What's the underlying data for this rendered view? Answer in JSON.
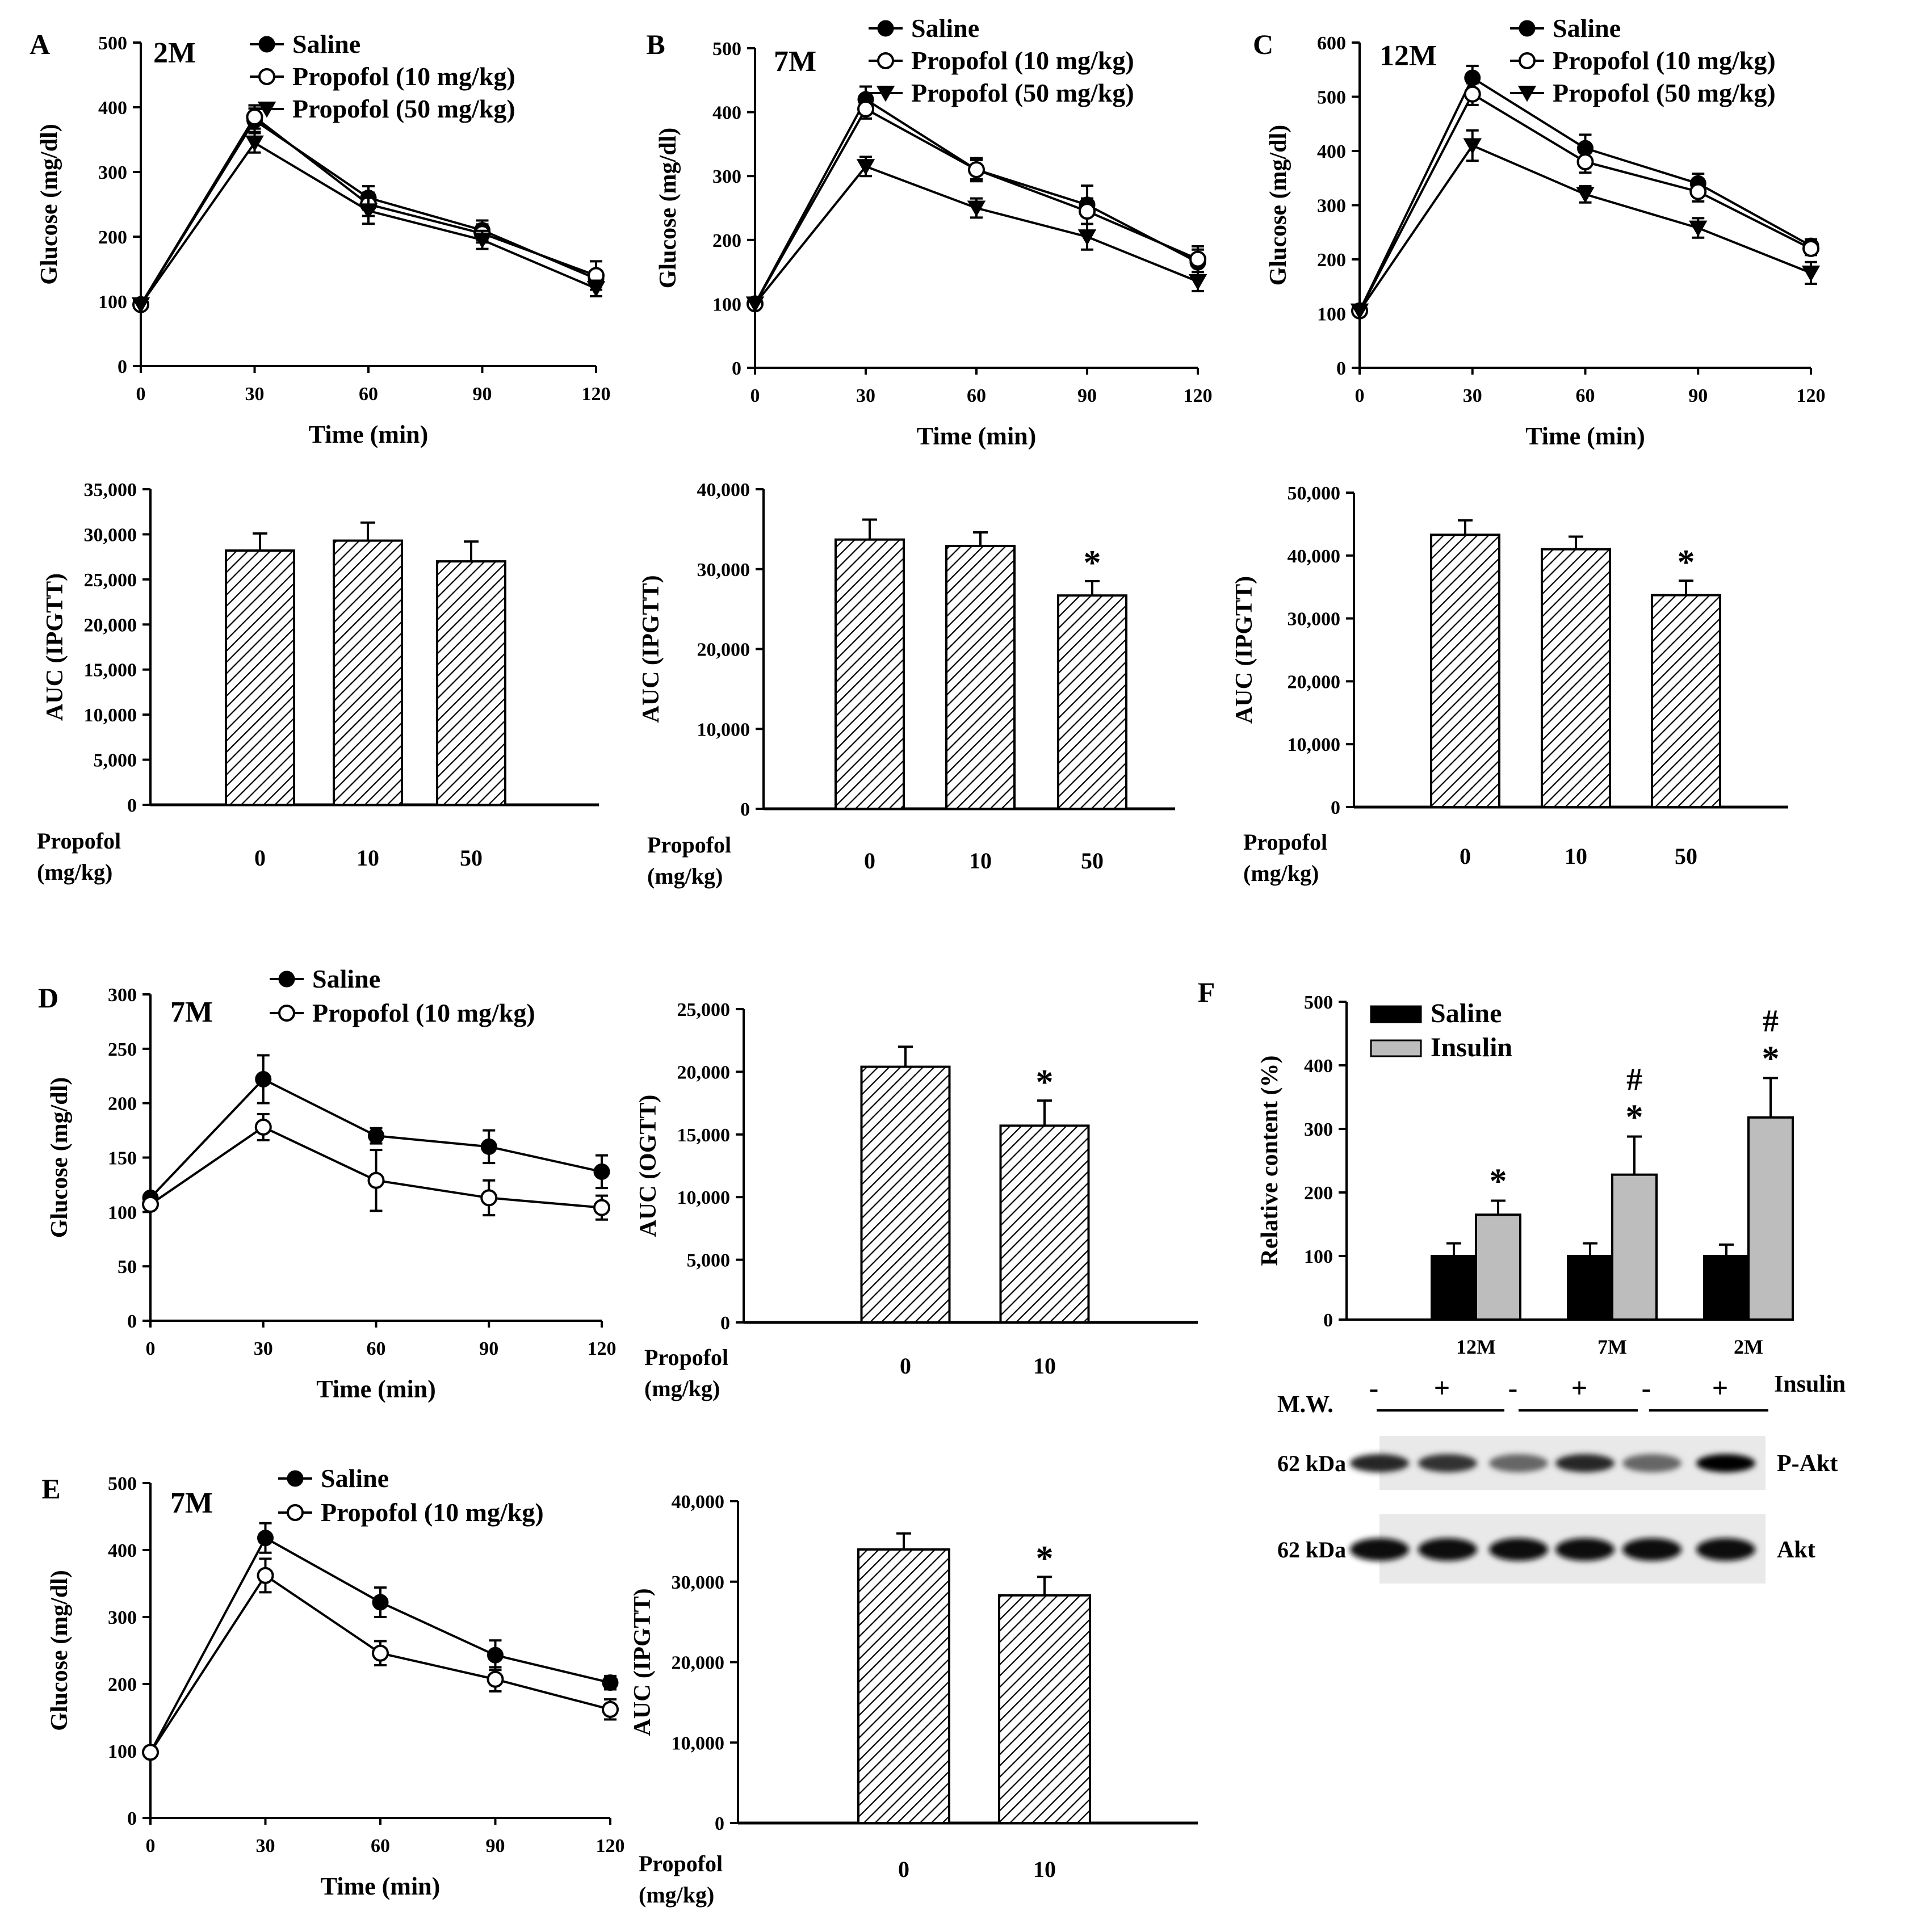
{
  "figure": {
    "panel_letters": [
      "A",
      "B",
      "C",
      "D",
      "E",
      "F"
    ]
  },
  "chart_data": [
    {
      "id": "A_line",
      "type": "line",
      "panel_letter": "A",
      "tag": "2M",
      "xlabel": "Time (min)",
      "ylabel": "Glucose (mg/dl)",
      "x": [
        0,
        30,
        60,
        90,
        120
      ],
      "xticks": [
        "0",
        "30",
        "60",
        "90",
        "120"
      ],
      "ylim": [
        0,
        500
      ],
      "yticks": [
        "0",
        "100",
        "200",
        "300",
        "400",
        "500"
      ],
      "series": [
        {
          "name": "Saline",
          "marker": "filled-circle",
          "values": [
            95,
            380,
            260,
            210,
            135
          ],
          "errors": [
            0,
            18,
            18,
            15,
            12
          ]
        },
        {
          "name": "Propofol  (10 mg/kg)",
          "marker": "open-circle",
          "values": [
            95,
            385,
            250,
            205,
            140
          ],
          "errors": [
            0,
            18,
            18,
            14,
            22
          ]
        },
        {
          "name": "Propofol  (50 mg/kg)",
          "marker": "filled-triangle-down",
          "values": [
            95,
            345,
            240,
            195,
            120
          ],
          "errors": [
            0,
            15,
            20,
            14,
            12
          ]
        }
      ]
    },
    {
      "id": "B_line",
      "type": "line",
      "panel_letter": "B",
      "tag": "7M",
      "xlabel": "Time (min)",
      "ylabel": "Glucose (mg/dl)",
      "x": [
        0,
        30,
        60,
        90,
        120
      ],
      "xticks": [
        "0",
        "30",
        "60",
        "90",
        "120"
      ],
      "ylim": [
        0,
        500
      ],
      "yticks": [
        "0",
        "100",
        "200",
        "300",
        "400",
        "500"
      ],
      "series": [
        {
          "name": "Saline",
          "marker": "filled-circle",
          "values": [
            100,
            420,
            310,
            255,
            165
          ],
          "errors": [
            0,
            20,
            15,
            30,
            20
          ]
        },
        {
          "name": "Propofol (10 mg/kg)",
          "marker": "open-circle",
          "values": [
            100,
            405,
            310,
            245,
            170
          ],
          "errors": [
            0,
            15,
            18,
            20,
            20
          ]
        },
        {
          "name": "Propofol (50 mg/kg)",
          "marker": "filled-triangle-down",
          "values": [
            100,
            315,
            250,
            205,
            135
          ],
          "errors": [
            0,
            15,
            15,
            20,
            15
          ]
        }
      ]
    },
    {
      "id": "C_line",
      "type": "line",
      "panel_letter": "C",
      "tag": "12M",
      "xlabel": "Time (min)",
      "ylabel": "Glucose (mg/dl)",
      "x": [
        0,
        30,
        60,
        90,
        120
      ],
      "xticks": [
        "0",
        "30",
        "60",
        "90",
        "120"
      ],
      "ylim": [
        0,
        600
      ],
      "yticks": [
        "0",
        "100",
        "200",
        "300",
        "400",
        "500",
        "600"
      ],
      "series": [
        {
          "name": "Saline",
          "marker": "filled-circle",
          "values": [
            105,
            535,
            405,
            340,
            225
          ],
          "errors": [
            0,
            22,
            25,
            18,
            12
          ]
        },
        {
          "name": "Propofol (10 mg/kg)",
          "marker": "open-circle",
          "values": [
            105,
            505,
            380,
            325,
            220
          ],
          "errors": [
            0,
            20,
            20,
            18,
            12
          ]
        },
        {
          "name": "Propofol (50 mg/kg)",
          "marker": "filled-triangle-down",
          "values": [
            105,
            410,
            320,
            258,
            175
          ],
          "errors": [
            0,
            28,
            15,
            18,
            20
          ]
        }
      ]
    },
    {
      "id": "A_bar",
      "type": "bar",
      "ylabel": "AUC (IPGTT)",
      "group_label": "Propofol\n(mg/kg)",
      "categories": [
        "0",
        "10",
        "50"
      ],
      "values": [
        28200,
        29300,
        27000
      ],
      "errors": [
        1900,
        2000,
        2200
      ],
      "ylim": [
        0,
        35000
      ],
      "yticks": [
        "0",
        "5,000",
        "10,000",
        "15,000",
        "20,000",
        "25,000",
        "30,000",
        "35,000"
      ],
      "significance": [
        "",
        "",
        ""
      ]
    },
    {
      "id": "B_bar",
      "type": "bar",
      "ylabel": "AUC (IPGTT)",
      "group_label": "Propofol\n(mg/kg)",
      "categories": [
        "0",
        "10",
        "50"
      ],
      "values": [
        33700,
        32900,
        26700
      ],
      "errors": [
        2500,
        1700,
        1800
      ],
      "ylim": [
        0,
        40000
      ],
      "yticks": [
        "0",
        "10,000",
        "20,000",
        "30,000",
        "40,000"
      ],
      "significance": [
        "",
        "",
        "*"
      ]
    },
    {
      "id": "C_bar",
      "type": "bar",
      "ylabel": "AUC (IPGTT)",
      "group_label": "Propofol\n(mg/kg)",
      "categories": [
        "0",
        "10",
        "50"
      ],
      "values": [
        43300,
        41000,
        33700
      ],
      "errors": [
        2300,
        2000,
        2300
      ],
      "ylim": [
        0,
        50000
      ],
      "yticks": [
        "0",
        "10,000",
        "20,000",
        "30,000",
        "40,000",
        "50,000"
      ],
      "significance": [
        "",
        "",
        "*"
      ]
    },
    {
      "id": "D_line",
      "type": "line",
      "panel_letter": "D",
      "tag": "7M",
      "xlabel": "Time (min)",
      "ylabel": "Glucose (mg/dl)",
      "x": [
        0,
        30,
        60,
        90,
        120
      ],
      "xticks": [
        "0",
        "30",
        "60",
        "90",
        "120"
      ],
      "ylim": [
        0,
        300
      ],
      "yticks": [
        "0",
        "50",
        "100",
        "150",
        "200",
        "250",
        "300"
      ],
      "series": [
        {
          "name": "Saline",
          "marker": "filled-circle",
          "values": [
            113,
            222,
            170,
            160,
            137
          ],
          "errors": [
            0,
            22,
            7,
            15,
            15
          ]
        },
        {
          "name": "Propofol (10 mg/kg)",
          "marker": "open-circle",
          "values": [
            107,
            178,
            129,
            113,
            104
          ],
          "errors": [
            0,
            12,
            28,
            16,
            11
          ]
        }
      ]
    },
    {
      "id": "D_bar",
      "type": "bar",
      "ylabel": "AUC (OGTT)",
      "group_label": "Propofol\n(mg/kg)",
      "categories": [
        "0",
        "10"
      ],
      "values": [
        20400,
        15700
      ],
      "errors": [
        1600,
        2000
      ],
      "ylim": [
        0,
        25000
      ],
      "yticks": [
        "0",
        "5,000",
        "10,000",
        "15,000",
        "20,000",
        "25,000"
      ],
      "significance": [
        "",
        "*"
      ]
    },
    {
      "id": "E_line",
      "type": "line",
      "panel_letter": "E",
      "tag": "7M",
      "xlabel": "Time (min)",
      "ylabel": "Glucose (mg/dl)",
      "x": [
        0,
        30,
        60,
        90,
        120
      ],
      "xticks": [
        "0",
        "30",
        "60",
        "90",
        "120"
      ],
      "ylim": [
        0,
        500
      ],
      "yticks": [
        "0",
        "100",
        "200",
        "300",
        "400",
        "500"
      ],
      "series": [
        {
          "name": "Saline",
          "marker": "filled-circle",
          "values": [
            98,
            418,
            322,
            243,
            202
          ],
          "errors": [
            0,
            22,
            22,
            22,
            10
          ]
        },
        {
          "name": "Propofol (10 mg/kg)",
          "marker": "open-circle",
          "values": [
            98,
            362,
            246,
            207,
            162
          ],
          "errors": [
            0,
            25,
            18,
            18,
            15
          ]
        }
      ]
    },
    {
      "id": "E_bar",
      "type": "bar",
      "ylabel": "AUC (IPGTT)",
      "group_label": "Propofol\n(mg/kg)",
      "categories": [
        "0",
        "10"
      ],
      "values": [
        34000,
        28300
      ],
      "errors": [
        2000,
        2300
      ],
      "ylim": [
        0,
        40000
      ],
      "yticks": [
        "0",
        "10,000",
        "20,000",
        "30,000",
        "40,000"
      ],
      "significance": [
        "",
        "*"
      ]
    },
    {
      "id": "F_bar",
      "type": "bar",
      "panel_letter": "F",
      "ylabel": "Relative content (%)",
      "categories": [
        "12M",
        "7M",
        "2M"
      ],
      "ylim": [
        0,
        500
      ],
      "yticks": [
        "0",
        "100",
        "200",
        "300",
        "400",
        "500"
      ],
      "series": [
        {
          "name": "Saline",
          "color": "#000000",
          "values": [
            100,
            100,
            100
          ],
          "errors": [
            20,
            20,
            18
          ],
          "significance": [
            "",
            "",
            ""
          ]
        },
        {
          "name": "Insulin",
          "color": "#bdbdbd",
          "values": [
            165,
            228,
            318
          ],
          "errors": [
            22,
            60,
            62
          ],
          "significance": [
            "*",
            "#\n*",
            "#\n*"
          ]
        }
      ]
    }
  ],
  "western_blot": {
    "mw_label": "M.W.",
    "insulin_label": "Insulin",
    "lanes": [
      "-",
      "+",
      "-",
      "+",
      "-",
      "+"
    ],
    "rows": [
      {
        "mw": "62 kDa",
        "protein": "P-Akt",
        "band_intensity": [
          0.85,
          0.8,
          0.6,
          0.85,
          0.6,
          1.0
        ]
      },
      {
        "mw": "62 kDa",
        "protein": "Akt",
        "band_intensity": [
          0.95,
          0.95,
          0.95,
          0.95,
          0.95,
          0.95
        ]
      }
    ]
  }
}
